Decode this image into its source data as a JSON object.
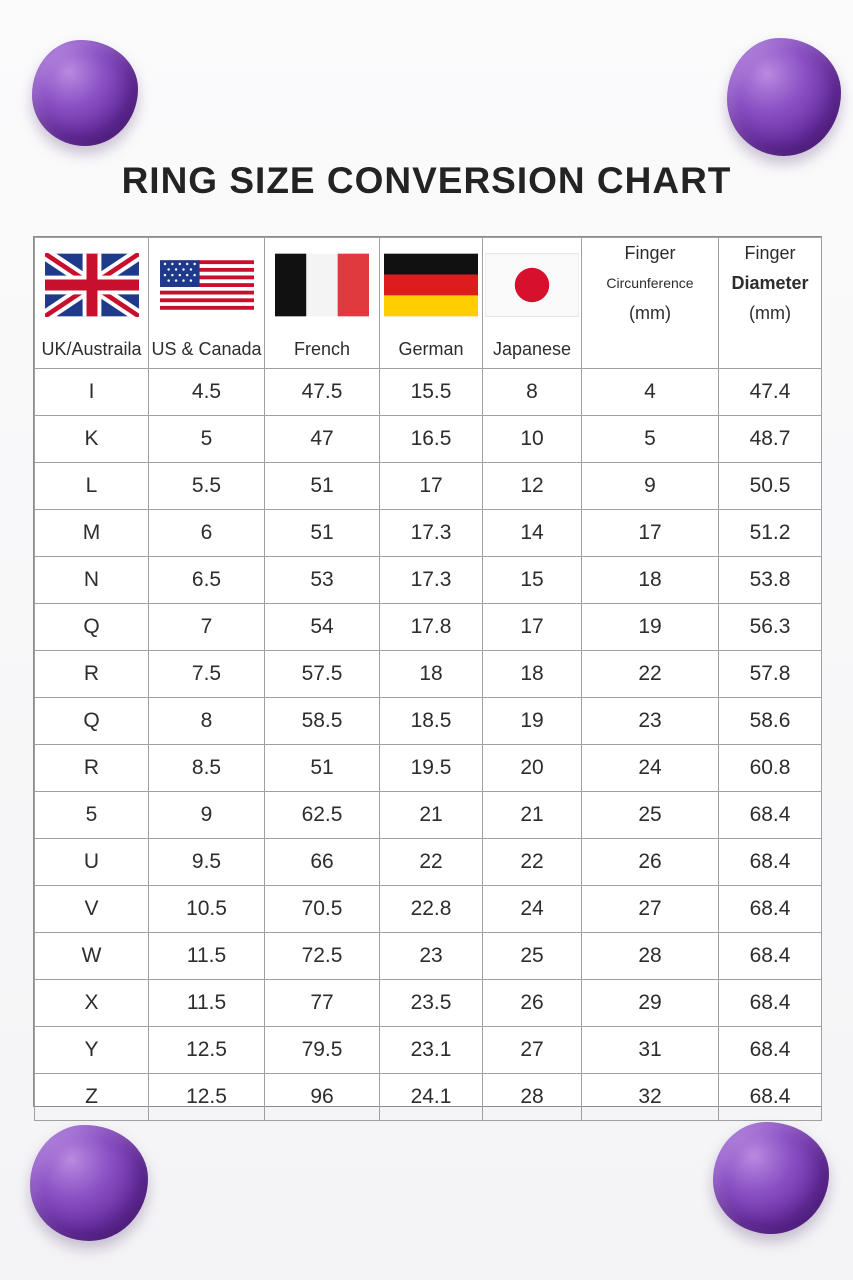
{
  "title": "RING SIZE CONVERSION CHART",
  "columns": [
    {
      "label": "UK/Austraila",
      "flag": "uk-flag"
    },
    {
      "label": "US & Canada",
      "flag": "us-flag"
    },
    {
      "label": "French",
      "flag": "france-flag"
    },
    {
      "label": "German",
      "flag": "germany-flag"
    },
    {
      "label": "Japanese",
      "flag": "japan-flag"
    },
    {
      "line1": "Finger",
      "line2": "Circunference",
      "line3": "(mm)"
    },
    {
      "line1": "Finger",
      "line2": "Diameter",
      "line3": "(mm)"
    }
  ],
  "rows": [
    [
      "I",
      "4.5",
      "47.5",
      "15.5",
      "8",
      "4",
      "47.4"
    ],
    [
      "K",
      "5",
      "47",
      "16.5",
      "10",
      "5",
      "48.7"
    ],
    [
      "L",
      "5.5",
      "51",
      "17",
      "12",
      "9",
      "50.5"
    ],
    [
      "M",
      "6",
      "51",
      "17.3",
      "14",
      "17",
      "51.2"
    ],
    [
      "N",
      "6.5",
      "53",
      "17.3",
      "15",
      "18",
      "53.8"
    ],
    [
      "Q",
      "7",
      "54",
      "17.8",
      "17",
      "19",
      "56.3"
    ],
    [
      "R",
      "7.5",
      "57.5",
      "18",
      "18",
      "22",
      "57.8"
    ],
    [
      "Q",
      "8",
      "58.5",
      "18.5",
      "19",
      "23",
      "58.6"
    ],
    [
      "R",
      "8.5",
      "51",
      "19.5",
      "20",
      "24",
      "60.8"
    ],
    [
      "5",
      "9",
      "62.5",
      "21",
      "21",
      "25",
      "68.4"
    ],
    [
      "U",
      "9.5",
      "66",
      "22",
      "22",
      "26",
      "68.4"
    ],
    [
      "V",
      "10.5",
      "70.5",
      "22.8",
      "24",
      "27",
      "68.4"
    ],
    [
      "W",
      "11.5",
      "72.5",
      "23",
      "25",
      "28",
      "68.4"
    ],
    [
      "X",
      "11.5",
      "77",
      "23.5",
      "26",
      "29",
      "68.4"
    ],
    [
      "Y",
      "12.5",
      "79.5",
      "23.1",
      "27",
      "31",
      "68.4"
    ],
    [
      "Z",
      "12.5",
      "96",
      "24.1",
      "28",
      "32",
      "68.4"
    ]
  ]
}
